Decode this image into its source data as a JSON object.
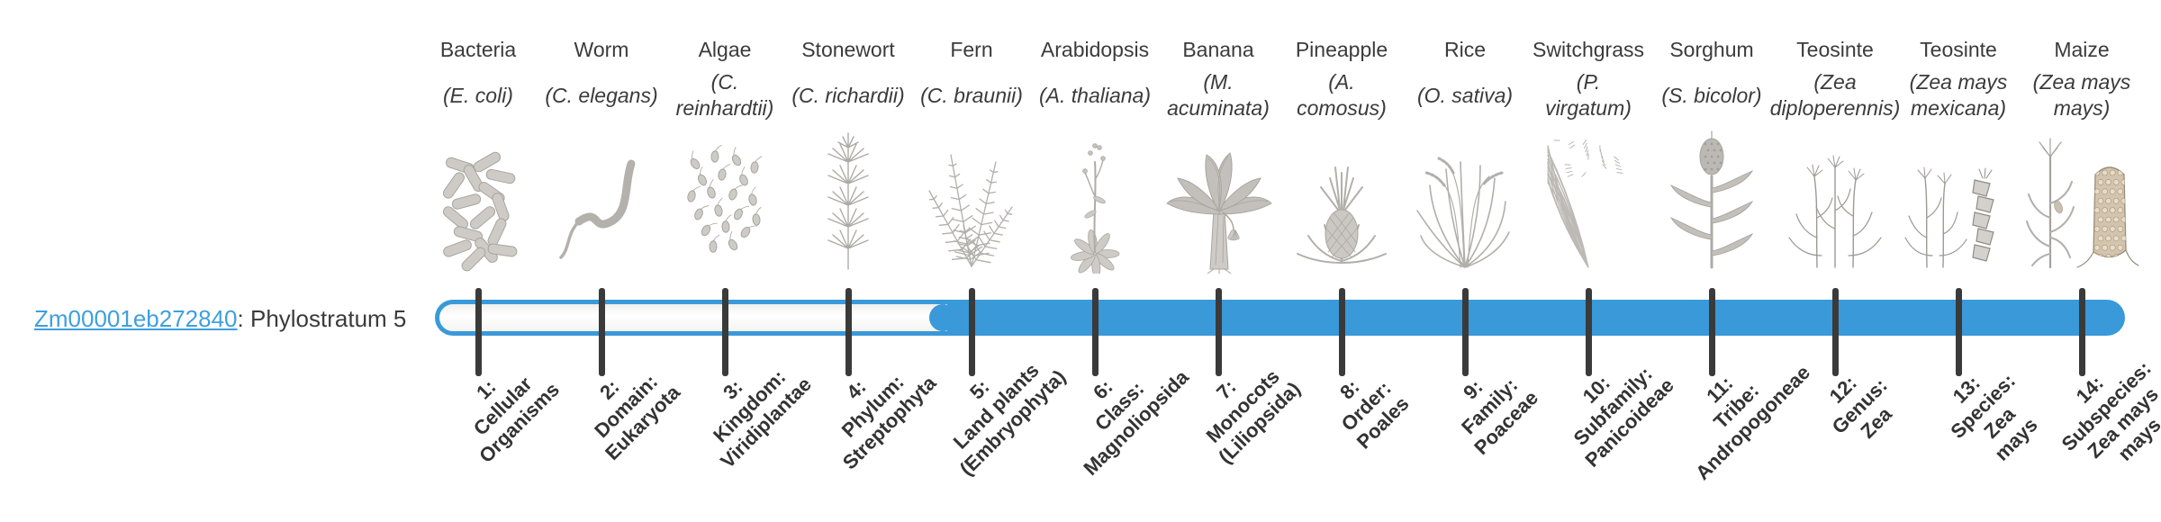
{
  "gene": {
    "id": "Zm00001eb272840",
    "suffix": ": Phylostratum 5",
    "phylostratum": 5
  },
  "colors": {
    "bar_blue": "#3a99d8",
    "link_blue": "#3f9fdf",
    "tick": "#3a3a3a",
    "text": "#3b3b3b",
    "illustration_gray": "#a8a5a0"
  },
  "timeline": {
    "total_strata": 14,
    "filled_from_stratum": 5
  },
  "organisms": [
    {
      "name": "Bacteria",
      "sci_lines": [
        "(E. coli)"
      ],
      "icon": "bacteria-icon"
    },
    {
      "name": "Worm",
      "sci_lines": [
        "(C. elegans)"
      ],
      "icon": "worm-icon"
    },
    {
      "name": "Algae",
      "sci_lines": [
        "(C.",
        "reinhardtii)"
      ],
      "icon": "algae-icon"
    },
    {
      "name": "Stonewort",
      "sci_lines": [
        "(C. richardii)"
      ],
      "icon": "stonewort-icon"
    },
    {
      "name": "Fern",
      "sci_lines": [
        "(C. braunii)"
      ],
      "icon": "fern-icon"
    },
    {
      "name": "Arabidopsis",
      "sci_lines": [
        "(A. thaliana)"
      ],
      "icon": "arabidopsis-icon"
    },
    {
      "name": "Banana",
      "sci_lines": [
        "(M.",
        "acuminata)"
      ],
      "icon": "banana-icon"
    },
    {
      "name": "Pineapple",
      "sci_lines": [
        "(A.",
        "comosus)"
      ],
      "icon": "pineapple-icon"
    },
    {
      "name": "Rice",
      "sci_lines": [
        "(O. sativa)"
      ],
      "icon": "rice-icon"
    },
    {
      "name": "Switchgrass",
      "sci_lines": [
        "(P.",
        "virgatum)"
      ],
      "icon": "switchgrass-icon"
    },
    {
      "name": "Sorghum",
      "sci_lines": [
        "(S. bicolor)"
      ],
      "icon": "sorghum-icon"
    },
    {
      "name": "Teosinte",
      "sci_lines": [
        "(Zea",
        "diploperennis)"
      ],
      "icon": "teosinte-diplo-icon"
    },
    {
      "name": "Teosinte",
      "sci_lines": [
        "(Zea mays",
        "mexicana)"
      ],
      "icon": "teosinte-mex-icon"
    },
    {
      "name": "Maize",
      "sci_lines": [
        "(Zea mays",
        "mays)"
      ],
      "icon": "maize-icon"
    }
  ],
  "strata": [
    {
      "index": 1,
      "lines": [
        "1:",
        "Cellular",
        "Organisms"
      ]
    },
    {
      "index": 2,
      "lines": [
        "2:",
        "Domain:",
        "Eukaryota"
      ]
    },
    {
      "index": 3,
      "lines": [
        "3:",
        "Kingdom:",
        "Viridiplantae"
      ]
    },
    {
      "index": 4,
      "lines": [
        "4:",
        "Phylum:",
        "Streptophyta"
      ]
    },
    {
      "index": 5,
      "lines": [
        "5:",
        "Land plants",
        "(Embryophyta)"
      ]
    },
    {
      "index": 6,
      "lines": [
        "6:",
        "Class:",
        "Magnoliopsida"
      ]
    },
    {
      "index": 7,
      "lines": [
        "7:",
        "Monocots",
        "(Liliopsida)"
      ]
    },
    {
      "index": 8,
      "lines": [
        "8:",
        "Order:",
        "Poales"
      ]
    },
    {
      "index": 9,
      "lines": [
        "9:",
        "Family:",
        "Poaceae"
      ]
    },
    {
      "index": 10,
      "lines": [
        "10:",
        "Subfamily:",
        "Panicoideae"
      ]
    },
    {
      "index": 11,
      "lines": [
        "11:",
        "Tribe:",
        "Andropogoneae"
      ]
    },
    {
      "index": 12,
      "lines": [
        "12:",
        "Genus:",
        "Zea"
      ]
    },
    {
      "index": 13,
      "lines": [
        "13:",
        "Species:",
        "Zea",
        "mays"
      ]
    },
    {
      "index": 14,
      "lines": [
        "14:",
        "Subspecies:",
        "Zea mays",
        "mays"
      ]
    }
  ]
}
